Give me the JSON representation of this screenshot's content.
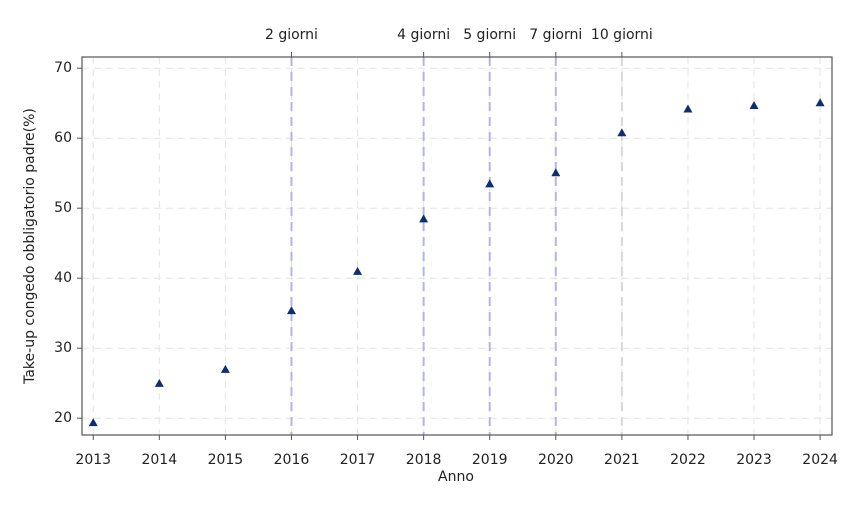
{
  "chart_data": {
    "type": "scatter",
    "x": [
      2013,
      2014,
      2015,
      2016,
      2017,
      2018,
      2019,
      2020,
      2021,
      2022,
      2023,
      2024
    ],
    "series": [
      {
        "color": "#0d2f6e",
        "values": [
          19.3,
          24.9,
          26.9,
          35.3,
          40.9,
          48.4,
          53.4,
          55.0,
          60.7,
          64.1,
          64.6,
          65.0
        ]
      }
    ],
    "xlabel": "Anno",
    "ylabel": "Take-up congedo obbligatorio padre(%)",
    "xlim": [
      2012.83,
      2024.18
    ],
    "ylim": [
      17.6,
      71.6
    ],
    "xticks": [
      2013,
      2014,
      2015,
      2016,
      2017,
      2018,
      2019,
      2020,
      2021,
      2022,
      2023,
      2024
    ],
    "yticks": [
      20,
      30,
      40,
      50,
      60,
      70
    ],
    "grid": true,
    "annotations": [
      {
        "x": 2016,
        "label": "2 giorni",
        "color": "#b4b4e8"
      },
      {
        "x": 2018,
        "label": "4 giorni",
        "color": "#b4b4e8"
      },
      {
        "x": 2019,
        "label": "5 giorni",
        "color": "#b4b4e8"
      },
      {
        "x": 2020,
        "label": "7 giorni",
        "color": "#b4b4e8"
      },
      {
        "x": 2021,
        "label": "10 giorni",
        "color": "#d8d8d8"
      }
    ]
  }
}
